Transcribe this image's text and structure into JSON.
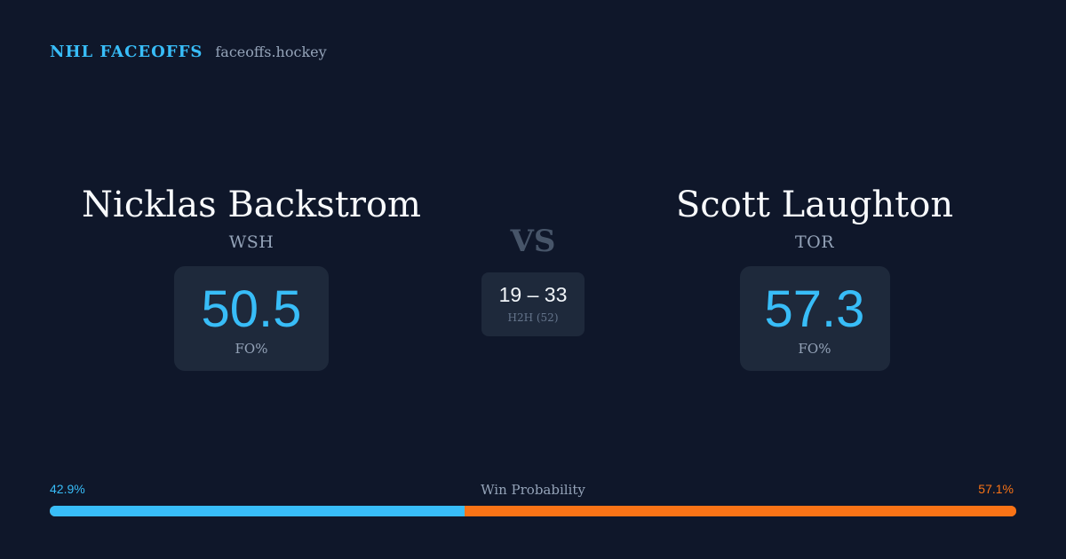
{
  "brand": {
    "name": "NHL FACEOFFS",
    "url": "faceoffs.hockey"
  },
  "player_left": {
    "name": "Nicklas Backstrom",
    "team": "WSH",
    "fo_value": "50.5",
    "fo_label": "FO%"
  },
  "player_right": {
    "name": "Scott Laughton",
    "team": "TOR",
    "fo_value": "57.3",
    "fo_label": "FO%"
  },
  "versus": "VS",
  "head_to_head": {
    "score": "19 – 33",
    "label": "H2H (52)"
  },
  "win_probability": {
    "title": "Win Probability",
    "left_label": "42.9%",
    "right_label": "57.1%",
    "left_fraction": 0.429,
    "right_fraction": 0.571
  },
  "colors": {
    "background": "#0f172a",
    "accent_left": "#38bdf8",
    "accent_right": "#f97316",
    "card": "#1e293b"
  }
}
